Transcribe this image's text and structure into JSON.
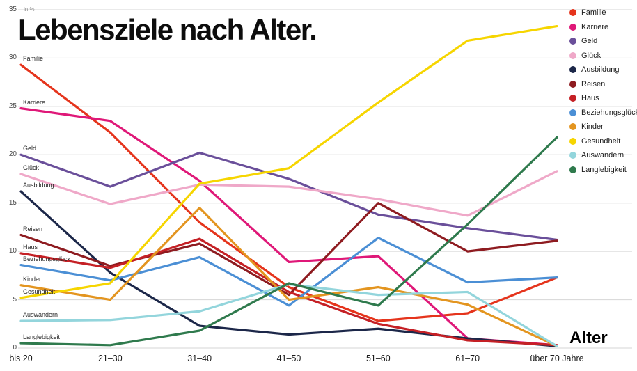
{
  "title": "Lebensziele nach Alter.",
  "x_axis_title": "Alter",
  "y_axis_unit": "in %",
  "chart_data": {
    "type": "line",
    "title": "Lebensziele nach Alter.",
    "xlabel": "Alter",
    "ylabel": "in %",
    "ylim": [
      0,
      35
    ],
    "y_ticks": [
      0,
      5,
      10,
      15,
      20,
      25,
      30,
      35
    ],
    "grid": true,
    "legend_position": "right",
    "categories": [
      "bis 20",
      "21–30",
      "31–40",
      "41–50",
      "51–60",
      "61–70",
      "über 70 Jahre"
    ],
    "series": [
      {
        "name": "Familie",
        "color": "#e5341c",
        "values": [
          29.3,
          22.3,
          13.0,
          6.3,
          2.8,
          3.6,
          7.3
        ]
      },
      {
        "name": "Karriere",
        "color": "#df1878",
        "values": [
          24.8,
          23.5,
          17.3,
          8.9,
          9.5,
          1.0,
          0.3
        ]
      },
      {
        "name": "Geld",
        "color": "#6a4f9a",
        "values": [
          20.0,
          16.7,
          20.2,
          17.5,
          13.8,
          12.4,
          11.2
        ]
      },
      {
        "name": "Glück",
        "color": "#efa8c8",
        "values": [
          18.0,
          14.9,
          16.9,
          16.7,
          15.4,
          13.7,
          18.3
        ]
      },
      {
        "name": "Ausbildung",
        "color": "#1c2749",
        "values": [
          16.2,
          7.8,
          2.3,
          1.4,
          2.0,
          1.0,
          0.2
        ]
      },
      {
        "name": "Reisen",
        "color": "#8e1b20",
        "values": [
          11.7,
          8.5,
          10.8,
          5.5,
          15.0,
          10.0,
          11.1
        ]
      },
      {
        "name": "Haus",
        "color": "#c52025",
        "values": [
          9.8,
          8.3,
          11.3,
          5.8,
          2.5,
          0.8,
          0.3
        ]
      },
      {
        "name": "Beziehungsglück",
        "color": "#4b8fd5",
        "values": [
          8.6,
          7.0,
          9.4,
          4.4,
          11.4,
          6.8,
          7.3
        ]
      },
      {
        "name": "Kinder",
        "color": "#e39520",
        "values": [
          6.5,
          5.0,
          14.5,
          5.0,
          6.3,
          4.5,
          0.2
        ]
      },
      {
        "name": "Gesundheit",
        "color": "#f6d500",
        "values": [
          5.2,
          6.7,
          17.0,
          18.6,
          25.4,
          31.8,
          33.3
        ]
      },
      {
        "name": "Auswandern",
        "color": "#93d5dc",
        "values": [
          2.8,
          2.9,
          3.8,
          6.6,
          5.5,
          5.8,
          0.2
        ]
      },
      {
        "name": "Langlebigkeit",
        "color": "#2f7a4d",
        "values": [
          0.5,
          0.3,
          1.8,
          6.7,
          4.4,
          12.8,
          21.8
        ]
      }
    ]
  },
  "style": {
    "grid_color": "#d6d6d6",
    "line_width": 3.2
  }
}
